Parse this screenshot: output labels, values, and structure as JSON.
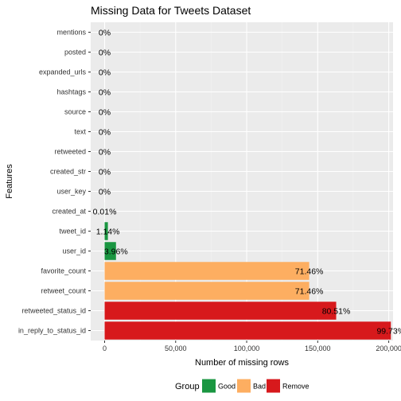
{
  "chart_data": {
    "type": "bar",
    "orientation": "horizontal",
    "title": "Missing Data for Tweets Dataset",
    "xlabel": "Number of missing rows",
    "ylabel": "Features",
    "xlim": [
      0,
      206000
    ],
    "x_ticks": [
      0,
      50000,
      100000,
      150000,
      200000
    ],
    "x_tick_labels": [
      "0",
      "50,000",
      "100,000",
      "150,000",
      "200,000"
    ],
    "grid": true,
    "legend_position": "bottom",
    "legend_title": "Group",
    "groups": [
      {
        "name": "Good",
        "color": "#1a9641"
      },
      {
        "name": "Bad",
        "color": "#fdae61"
      },
      {
        "name": "Remove",
        "color": "#d7191c"
      }
    ],
    "categories": [
      "mentions",
      "posted",
      "expanded_urls",
      "hashtags",
      "source",
      "text",
      "retweeted",
      "created_str",
      "user_key",
      "created_at",
      "tweet_id",
      "user_id",
      "favorite_count",
      "retweet_count",
      "retweeted_status_id",
      "in_reply_to_status_id"
    ],
    "values": [
      0,
      0,
      0,
      0,
      0,
      0,
      0,
      0,
      0,
      21,
      2300,
      8000,
      144000,
      144000,
      163000,
      201500
    ],
    "percent_labels": [
      "0%",
      "0%",
      "0%",
      "0%",
      "0%",
      "0%",
      "0%",
      "0%",
      "0%",
      "0.01%",
      "1.14%",
      "3.96%",
      "71.46%",
      "71.46%",
      "80.51%",
      "99.73%"
    ],
    "group_of": [
      "Good",
      "Good",
      "Good",
      "Good",
      "Good",
      "Good",
      "Good",
      "Good",
      "Good",
      "Good",
      "Good",
      "Good",
      "Bad",
      "Bad",
      "Remove",
      "Remove"
    ]
  },
  "colors": {
    "panel_background": "#ebebeb",
    "grid_major": "#ffffff",
    "grid_minor": "#f2f2f2"
  }
}
